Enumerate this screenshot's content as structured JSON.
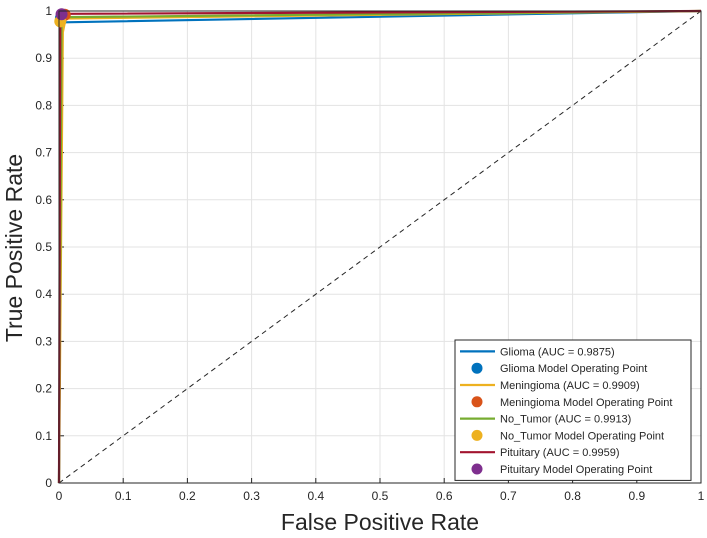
{
  "chart_data": {
    "type": "line",
    "title": "",
    "xlabel": "False Positive Rate",
    "ylabel": "True Positive Rate",
    "xlim": [
      0,
      1
    ],
    "ylim": [
      0,
      1
    ],
    "x_ticks": [
      "0",
      "0.1",
      "0.2",
      "0.3",
      "0.4",
      "0.5",
      "0.6",
      "0.7",
      "0.8",
      "0.9",
      "1"
    ],
    "y_ticks": [
      "0",
      "0.1",
      "0.2",
      "0.3",
      "0.4",
      "0.5",
      "0.6",
      "0.7",
      "0.8",
      "0.9",
      "1"
    ],
    "grid": true,
    "legend_position": "bottom-right",
    "chance_line": {
      "x": [
        0,
        1
      ],
      "y": [
        0,
        1
      ],
      "style": "dashed",
      "color": "#262626"
    },
    "series": [
      {
        "name": "Glioma (AUC = 0.9875)",
        "color": "#0072BD",
        "x": [
          0,
          0.004,
          0.006,
          0.008,
          1
        ],
        "y": [
          0,
          0.965,
          0.975,
          0.976,
          1
        ],
        "operating_point": {
          "name": "Glioma Model Operating Point",
          "x": 0.003,
          "y": 0.985,
          "color": "#0072BD"
        }
      },
      {
        "name": "Meningioma (AUC = 0.9909)",
        "color": "#EDB120",
        "x": [
          0,
          0.006,
          0.01,
          0.012,
          1
        ],
        "y": [
          0,
          0.955,
          0.982,
          0.984,
          1
        ],
        "operating_point": {
          "name": "Meningioma Model Operating Point",
          "x": 0.009,
          "y": 0.992,
          "color": "#D95319"
        }
      },
      {
        "name": "No_Tumor (AUC = 0.9913)",
        "color": "#77AC30",
        "x": [
          0,
          0.004,
          0.008,
          0.01,
          1
        ],
        "y": [
          0,
          0.97,
          0.985,
          0.987,
          1
        ],
        "operating_point": {
          "name": "No_Tumor Model Operating Point",
          "x": 0.002,
          "y": 0.978,
          "color": "#EDB120"
        }
      },
      {
        "name": "Pituitary (AUC = 0.9959)",
        "color": "#A2142F",
        "x": [
          0,
          0.002,
          0.006,
          0.012,
          1
        ],
        "y": [
          0,
          0.985,
          0.992,
          0.994,
          1
        ],
        "operating_point": {
          "name": "Pituitary Model Operating Point",
          "x": 0.004,
          "y": 0.993,
          "color": "#7E2F8E"
        }
      }
    ]
  }
}
